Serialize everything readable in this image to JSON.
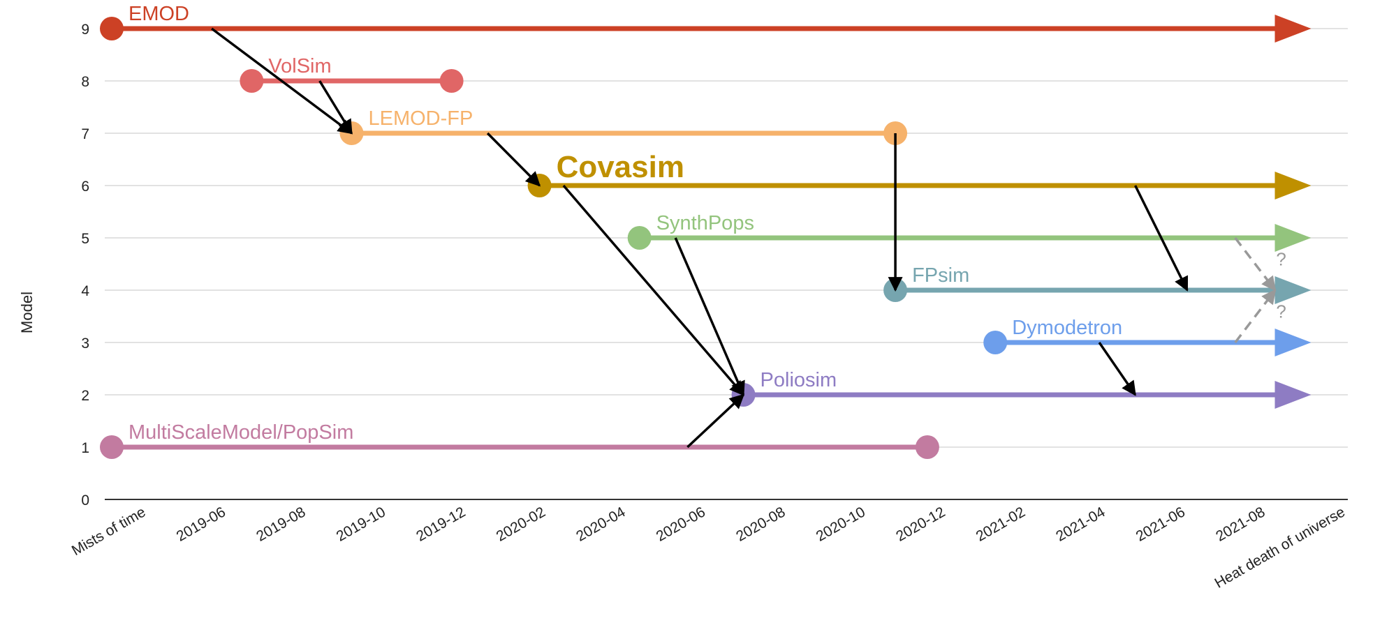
{
  "chart_data": {
    "type": "line",
    "title": "",
    "xlabel": "",
    "ylabel": "Model",
    "x_categories": [
      "Mists of time",
      "2019-06",
      "2019-08",
      "2019-10",
      "2019-12",
      "2020-02",
      "2020-04",
      "2020-06",
      "2020-08",
      "2020-10",
      "2020-12",
      "2021-02",
      "2021-04",
      "2021-06",
      "2021-08",
      "Heat death of universe"
    ],
    "y_ticks": [
      0,
      1,
      2,
      3,
      4,
      5,
      6,
      7,
      8,
      9
    ],
    "ylim": [
      0,
      9
    ],
    "grid": true,
    "series": [
      {
        "name": "EMOD",
        "color": "#cc4125",
        "y": 9,
        "start": 0,
        "end": 15,
        "ongoing": true,
        "bold": false
      },
      {
        "name": "VolSim",
        "color": "#e06666",
        "y": 8,
        "start": 1.75,
        "end": 4.25,
        "ongoing": false,
        "bold": false
      },
      {
        "name": "LEMOD-FP",
        "color": "#f6b26b",
        "y": 7,
        "start": 3,
        "end": 9.8,
        "ongoing": false,
        "bold": false
      },
      {
        "name": "Covasim",
        "color": "#bf9000",
        "y": 6,
        "start": 5.35,
        "end": 15,
        "ongoing": true,
        "bold": true
      },
      {
        "name": "SynthPops",
        "color": "#93c47d",
        "y": 5,
        "start": 6.6,
        "end": 15,
        "ongoing": true,
        "bold": false
      },
      {
        "name": "FPsim",
        "color": "#76a5af",
        "y": 4,
        "start": 9.8,
        "end": 15,
        "ongoing": true,
        "bold": false
      },
      {
        "name": "Dymodetron",
        "color": "#6d9eeb",
        "y": 3,
        "start": 11.05,
        "end": 15,
        "ongoing": true,
        "bold": false
      },
      {
        "name": "Poliosim",
        "color": "#8e7cc3",
        "y": 2,
        "start": 7.9,
        "end": 15,
        "ongoing": true,
        "bold": false
      },
      {
        "name": "MultiScaleModel/PopSim",
        "color": "#c27ba0",
        "y": 1,
        "start": 0,
        "end": 10.2,
        "ongoing": false,
        "bold": false
      }
    ],
    "links": [
      {
        "from": [
          1.25,
          9
        ],
        "to": [
          3,
          7
        ],
        "dashed": false
      },
      {
        "from": [
          2.6,
          8
        ],
        "to": [
          3,
          7
        ],
        "dashed": false
      },
      {
        "from": [
          4.7,
          7
        ],
        "to": [
          5.35,
          6
        ],
        "dashed": false
      },
      {
        "from": [
          5.65,
          6
        ],
        "to": [
          7.9,
          2
        ],
        "dashed": false
      },
      {
        "from": [
          7.05,
          5
        ],
        "to": [
          7.9,
          2
        ],
        "dashed": false
      },
      {
        "from": [
          7.2,
          1
        ],
        "to": [
          7.9,
          2
        ],
        "dashed": false
      },
      {
        "from": [
          9.8,
          7
        ],
        "to": [
          9.8,
          4
        ],
        "dashed": false
      },
      {
        "from": [
          12.8,
          6
        ],
        "to": [
          13.45,
          4
        ],
        "dashed": false
      },
      {
        "from": [
          12.35,
          3
        ],
        "to": [
          12.8,
          2
        ],
        "dashed": false
      },
      {
        "from": [
          14.05,
          5
        ],
        "to": [
          14.55,
          4
        ],
        "dashed": true,
        "label": "?"
      },
      {
        "from": [
          14.05,
          3
        ],
        "to": [
          14.55,
          4
        ],
        "dashed": true,
        "label": "?"
      }
    ]
  }
}
